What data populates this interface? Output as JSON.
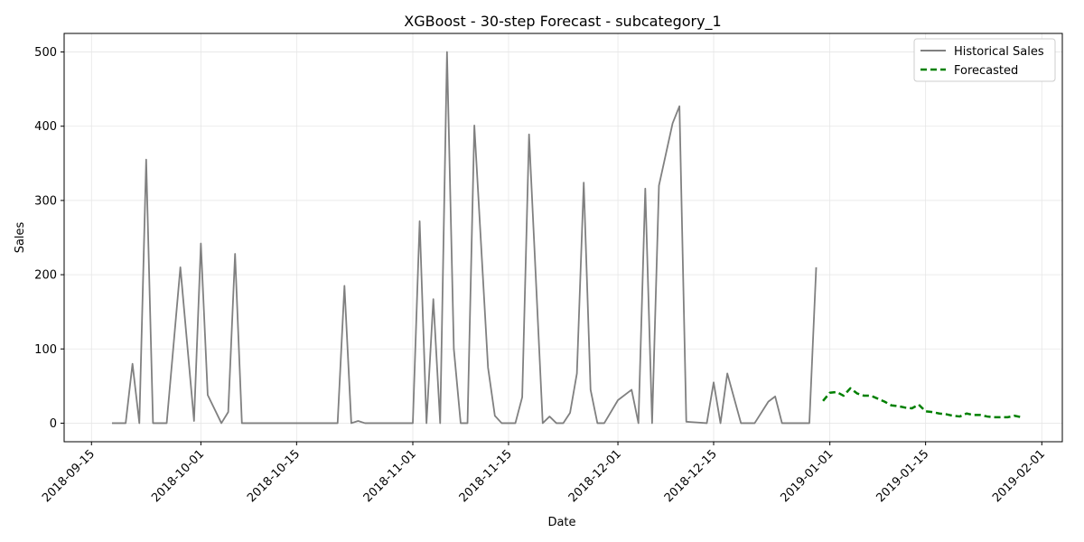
{
  "chart_data": {
    "type": "line",
    "title": "XGBoost - 30-step Forecast - subcategory_1",
    "xlabel": "Date",
    "ylabel": "Sales",
    "x_tick_labels": [
      "2018-09-15",
      "2018-10-01",
      "2018-10-15",
      "2018-11-01",
      "2018-11-15",
      "2018-12-01",
      "2018-12-15",
      "2019-01-01",
      "2019-01-15",
      "2019-02-01"
    ],
    "y_ticks": [
      0,
      100,
      200,
      300,
      400,
      500
    ],
    "xlim": [
      "2018-09-11",
      "2019-02-04"
    ],
    "ylim": [
      -25,
      525
    ],
    "grid": true,
    "legend_position": "top-right",
    "series": [
      {
        "name": "Historical Sales",
        "color": "#808080",
        "style": "solid",
        "points": [
          [
            "2018-09-18",
            0
          ],
          [
            "2018-09-20",
            0
          ],
          [
            "2018-09-21",
            80
          ],
          [
            "2018-09-22",
            0
          ],
          [
            "2018-09-23",
            355
          ],
          [
            "2018-09-24",
            0
          ],
          [
            "2018-09-26",
            0
          ],
          [
            "2018-09-28",
            210
          ],
          [
            "2018-09-30",
            3
          ],
          [
            "2018-10-01",
            242
          ],
          [
            "2018-10-02",
            38
          ],
          [
            "2018-10-04",
            0
          ],
          [
            "2018-10-05",
            15
          ],
          [
            "2018-10-06",
            228
          ],
          [
            "2018-10-07",
            0
          ],
          [
            "2018-10-21",
            0
          ],
          [
            "2018-10-22",
            185
          ],
          [
            "2018-10-23",
            0
          ],
          [
            "2018-10-24",
            3
          ],
          [
            "2018-10-25",
            0
          ],
          [
            "2018-11-01",
            0
          ],
          [
            "2018-11-02",
            272
          ],
          [
            "2018-11-03",
            0
          ],
          [
            "2018-11-04",
            167
          ],
          [
            "2018-11-05",
            0
          ],
          [
            "2018-11-06",
            500
          ],
          [
            "2018-11-07",
            100
          ],
          [
            "2018-11-08",
            0
          ],
          [
            "2018-11-09",
            0
          ],
          [
            "2018-11-10",
            401
          ],
          [
            "2018-11-12",
            75
          ],
          [
            "2018-11-13",
            10
          ],
          [
            "2018-11-14",
            0
          ],
          [
            "2018-11-16",
            0
          ],
          [
            "2018-11-17",
            35
          ],
          [
            "2018-11-18",
            389
          ],
          [
            "2018-11-20",
            0
          ],
          [
            "2018-11-21",
            9
          ],
          [
            "2018-11-22",
            0
          ],
          [
            "2018-11-23",
            0
          ],
          [
            "2018-11-24",
            14
          ],
          [
            "2018-11-25",
            67
          ],
          [
            "2018-11-26",
            324
          ],
          [
            "2018-11-27",
            45
          ],
          [
            "2018-11-28",
            0
          ],
          [
            "2018-11-29",
            0
          ],
          [
            "2018-12-01",
            31
          ],
          [
            "2018-12-03",
            45
          ],
          [
            "2018-12-04",
            0
          ],
          [
            "2018-12-05",
            316
          ],
          [
            "2018-12-06",
            0
          ],
          [
            "2018-12-07",
            320
          ],
          [
            "2018-12-09",
            404
          ],
          [
            "2018-12-10",
            427
          ],
          [
            "2018-12-11",
            2
          ],
          [
            "2018-12-14",
            0
          ],
          [
            "2018-12-15",
            55
          ],
          [
            "2018-12-16",
            0
          ],
          [
            "2018-12-17",
            67
          ],
          [
            "2018-12-19",
            0
          ],
          [
            "2018-12-21",
            0
          ],
          [
            "2018-12-23",
            29
          ],
          [
            "2018-12-24",
            36
          ],
          [
            "2018-12-25",
            0
          ],
          [
            "2018-12-29",
            0
          ],
          [
            "2018-12-30",
            210
          ]
        ]
      },
      {
        "name": "Forecasted",
        "color": "#008000",
        "style": "dashed",
        "points": [
          [
            "2018-12-31",
            30
          ],
          [
            "2019-01-01",
            41
          ],
          [
            "2019-01-02",
            42
          ],
          [
            "2019-01-03",
            37
          ],
          [
            "2019-01-04",
            47
          ],
          [
            "2019-01-05",
            40
          ],
          [
            "2019-01-06",
            37
          ],
          [
            "2019-01-07",
            37
          ],
          [
            "2019-01-08",
            33
          ],
          [
            "2019-01-09",
            29
          ],
          [
            "2019-01-10",
            24
          ],
          [
            "2019-01-11",
            23
          ],
          [
            "2019-01-12",
            21
          ],
          [
            "2019-01-13",
            20
          ],
          [
            "2019-01-14",
            25
          ],
          [
            "2019-01-15",
            16
          ],
          [
            "2019-01-16",
            15
          ],
          [
            "2019-01-17",
            13
          ],
          [
            "2019-01-18",
            12
          ],
          [
            "2019-01-19",
            10
          ],
          [
            "2019-01-20",
            9
          ],
          [
            "2019-01-21",
            13
          ],
          [
            "2019-01-22",
            11
          ],
          [
            "2019-01-23",
            11
          ],
          [
            "2019-01-24",
            9
          ],
          [
            "2019-01-25",
            8
          ],
          [
            "2019-01-26",
            8
          ],
          [
            "2019-01-27",
            8
          ],
          [
            "2019-01-28",
            10
          ],
          [
            "2019-01-29",
            8
          ]
        ]
      }
    ]
  }
}
